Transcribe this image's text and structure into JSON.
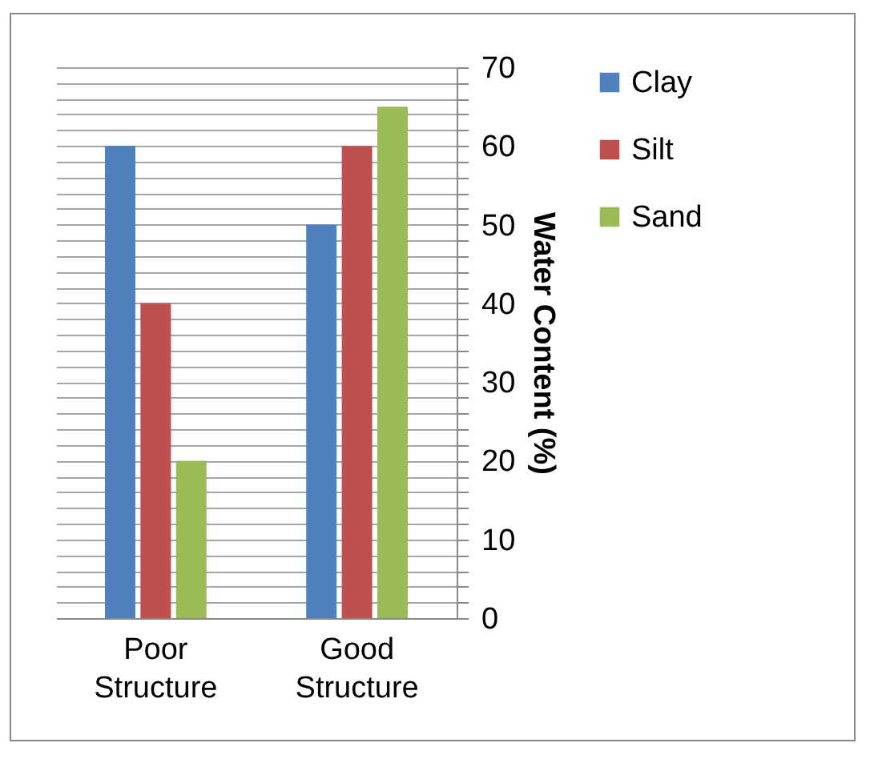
{
  "chart_data": {
    "type": "bar",
    "ylabel": "Water Content (%)",
    "categories": [
      "Poor Structure",
      "Good Structure"
    ],
    "series": [
      {
        "name": "Clay",
        "color": "#4f81bd",
        "values": [
          60,
          50
        ]
      },
      {
        "name": "Silt",
        "color": "#c0504d",
        "values": [
          40,
          60
        ]
      },
      {
        "name": "Sand",
        "color": "#9bbb59",
        "values": [
          20,
          65
        ]
      }
    ],
    "ylim": [
      0,
      70
    ],
    "yticks": [
      0,
      {
        "value": 2,
        "label": null
      },
      {
        "value": 4,
        "label": null
      },
      {
        "value": 6,
        "label": null
      },
      {
        "value": 8,
        "label": null
      },
      10,
      {
        "value": 12,
        "label": null
      },
      {
        "value": 14,
        "label": null
      },
      {
        "value": 16,
        "label": null
      },
      {
        "value": 18,
        "label": null
      },
      20,
      {
        "value": 22,
        "label": null
      },
      {
        "value": 24,
        "label": null
      },
      {
        "value": 26,
        "label": null
      },
      {
        "value": 28,
        "label": null
      },
      30,
      {
        "value": 32,
        "label": null
      },
      {
        "value": 34,
        "label": null
      },
      {
        "value": 36,
        "label": null
      },
      {
        "value": 38,
        "label": null
      },
      40,
      {
        "value": 42,
        "label": null
      },
      {
        "value": 44,
        "label": null
      },
      {
        "value": 46,
        "label": null
      },
      {
        "value": 48,
        "label": null
      },
      50,
      {
        "value": 52,
        "label": null
      },
      {
        "value": 54,
        "label": null
      },
      {
        "value": 56,
        "label": null
      },
      {
        "value": 58,
        "label": null
      },
      60,
      {
        "value": 62,
        "label": null
      },
      {
        "value": 64,
        "label": null
      },
      {
        "value": 66,
        "label": null
      },
      {
        "value": 68,
        "label": null
      },
      70
    ],
    "grid": true,
    "legend": "right"
  }
}
